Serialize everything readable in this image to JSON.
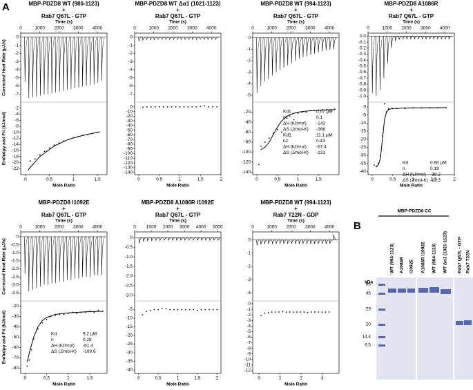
{
  "figure_label_a": "A",
  "chart_data": [
    {
      "type": "itc",
      "title": [
        "MBP-PDZD8 WT (980-1123)",
        "+",
        "Rab7 Q67L - GTP"
      ],
      "color": "#000000",
      "time_label": "Time (s)",
      "time_lim": [
        0,
        4500
      ],
      "time_ticks": [
        0,
        1000,
        2000,
        3000,
        4000
      ],
      "heat_ylabel": "Corrected Heat Rate (μJ/s)",
      "heat_ylim": [
        -8,
        0.5
      ],
      "heat_yticks": [
        0,
        -1,
        -2,
        -3,
        -4,
        -5,
        -6,
        -7
      ],
      "injections": {
        "x": [
          200,
          400,
          600,
          800,
          1000,
          1200,
          1400,
          1600,
          1800,
          2000,
          2200,
          2400,
          2600,
          2800,
          3000,
          3200,
          3400,
          3600,
          3800,
          4000,
          4200
        ],
        "values": [
          -5.5,
          -7.5,
          -7.4,
          -7.3,
          -7.2,
          -7.1,
          -7.0,
          -6.9,
          -6.8,
          -6.7,
          -6.6,
          -6.5,
          -6.4,
          -6.3,
          -6.2,
          -6.1,
          -6.0,
          -5.9,
          -5.8,
          -5.6,
          -5.4
        ]
      },
      "ratio_label": "Mole Ratio",
      "xlim": [
        -0.1,
        1.7
      ],
      "xticks": [
        0,
        0.5,
        1,
        1.5
      ],
      "ylabel": "Enthalpy and Fit (kJ/mol)",
      "ylim": [
        -24,
        0
      ],
      "yticks": [
        -2,
        -4,
        -6,
        -8,
        -10,
        -12,
        -14,
        -16,
        -18,
        -20,
        -22
      ],
      "points": {
        "x": [
          0.1,
          0.2,
          0.3,
          0.4,
          0.5,
          0.6,
          0.7,
          0.8,
          0.9,
          1.0,
          1.1,
          1.2,
          1.3,
          1.4,
          1.5
        ],
        "values": [
          -19.5,
          -18.8,
          -17.5,
          -16.3,
          -15.2,
          -14.2,
          -13.5,
          -12.8,
          -12.3,
          -11.8,
          -11.4,
          -11.0,
          -10.7,
          -10.4,
          -10.0
        ]
      },
      "fit": {
        "x": [
          0.05,
          0.3,
          0.6,
          0.9,
          1.2,
          1.55
        ],
        "values": [
          -22.5,
          -18,
          -14.5,
          -12.3,
          -11,
          -9.8
        ]
      }
    },
    {
      "type": "itc",
      "title": [
        "MBP-PDZD8 WT Δα1 (1021-1123)",
        "+",
        "Rab7 Q67L - GTP"
      ],
      "color": "#000000",
      "time_label": "Time (s)",
      "time_lim": [
        0,
        4500
      ],
      "time_ticks": [
        0,
        1000,
        2000,
        3000,
        4000
      ],
      "heat_ylim": [
        -8,
        0.5
      ],
      "heat_yticks": [
        0,
        -1,
        -2,
        -3,
        -4,
        -5,
        -6,
        -7
      ],
      "injections": {
        "x": [
          200,
          400,
          600,
          800,
          1000,
          1200,
          1400,
          1600,
          1800,
          2000,
          2200,
          2400,
          2600,
          2800,
          3000,
          3200,
          3400,
          3600,
          3800,
          4000,
          4200
        ],
        "values": [
          -0.5,
          -0.4,
          -0.35,
          -0.35,
          -0.35,
          -0.3,
          -0.3,
          -0.3,
          -0.3,
          -0.3,
          -0.3,
          -0.3,
          -0.3,
          -0.3,
          -0.3,
          -0.3,
          -0.3,
          -0.3,
          -0.3,
          -0.3,
          -0.3
        ]
      },
      "ratio_label": "Mole Ratio",
      "xlim": [
        -0.1,
        2.0
      ],
      "xticks": [
        0,
        0.5,
        1,
        1.5,
        2
      ],
      "ylim": [
        -145,
        10
      ],
      "yticks": [
        0,
        -10,
        -20,
        -30,
        -40,
        -50,
        -60,
        -70,
        -80,
        -90,
        -100,
        -110,
        -120,
        -130,
        -140
      ],
      "points": {
        "x": [
          0.1,
          0.2,
          0.3,
          0.4,
          0.5,
          0.6,
          0.7,
          0.8,
          0.9,
          1.0,
          1.1,
          1.2,
          1.3,
          1.4,
          1.5,
          1.6,
          1.7,
          1.8,
          1.9
        ],
        "values": [
          -1,
          0,
          0,
          0,
          0,
          0,
          0,
          0,
          0,
          0,
          0,
          0,
          0,
          0,
          1,
          2,
          0,
          0,
          0
        ]
      }
    },
    {
      "type": "itc",
      "title": [
        "MBP-PDZD8 WT (994-1123)",
        "+",
        "Rab7 Q67L - GTP"
      ],
      "color": "#000000",
      "time_label": "Time (s)",
      "time_lim": [
        0,
        4500
      ],
      "time_ticks": [
        0,
        1000,
        2000,
        3000,
        4000
      ],
      "heat_ylim": [
        -5.6,
        0.4
      ],
      "heat_yticks": [
        0,
        -1,
        -2,
        -3,
        -4,
        -5
      ],
      "injections": {
        "x": [
          200,
          400,
          600,
          800,
          1000,
          1200,
          1400,
          1600,
          1800,
          2000,
          2200,
          2400,
          2600,
          2800,
          3000,
          3200,
          3400,
          3600,
          3800,
          4000,
          4200
        ],
        "values": [
          -4.8,
          -4.2,
          -3.8,
          -3.6,
          -3.3,
          -3.0,
          -2.8,
          -2.6,
          -2.4,
          -2.2,
          -2.0,
          -1.8,
          -1.7,
          -1.6,
          -1.5,
          -1.4,
          -1.3,
          -1.2,
          -1.1,
          -1.05,
          -1.0
        ]
      },
      "ratio_label": "Mole Ratio",
      "xlim": [
        -0.1,
        2.0
      ],
      "xticks": [
        0,
        0.5,
        1,
        1.5
      ],
      "ylim": [
        -145,
        0
      ],
      "yticks": [
        -20,
        -40,
        -60,
        -80,
        -100,
        -120,
        -140
      ],
      "points": {
        "x": [
          0.05,
          0.1,
          0.2,
          0.3,
          0.4,
          0.5,
          0.6,
          0.7,
          0.8,
          0.9,
          1.0,
          1.1,
          1.2,
          1.3,
          1.4,
          1.5,
          1.6,
          1.7,
          1.8,
          1.9
        ],
        "values": [
          -125,
          -88,
          -80,
          -72,
          -62,
          -55,
          -60,
          -30,
          -28,
          -35,
          -22,
          -20,
          -20,
          -17,
          -17,
          -16,
          -15,
          -15,
          -15,
          -14
        ]
      },
      "fit": {
        "x": [
          0.1,
          0.2,
          0.3,
          0.4,
          0.5,
          0.6,
          0.7,
          0.8,
          1.0,
          1.2,
          1.5,
          1.9
        ],
        "values": [
          -95,
          -90,
          -80,
          -65,
          -50,
          -38,
          -30,
          -25,
          -20,
          -18,
          -16,
          -15
        ]
      },
      "annotations": [
        [
          "Kd1",
          "0.67 μM"
        ],
        [
          "n1",
          "0.1"
        ],
        [
          "ΔH (kJ/mol)",
          "-143"
        ],
        [
          "ΔS (J/mol-K)",
          "-366"
        ],
        [
          "Kd2",
          "11.1 μM"
        ],
        [
          "n2",
          "0.43"
        ],
        [
          "ΔH (kJ/mol)",
          "-67.4"
        ],
        [
          "ΔS (J/mol-K)",
          "-131"
        ]
      ]
    },
    {
      "type": "itc",
      "title": [
        "MBP-PDZD8 A1086R",
        "+",
        "Rab7 Q67L - GTP"
      ],
      "color": "#000000",
      "time_label": "Time (s)",
      "time_lim": [
        0,
        4500
      ],
      "time_ticks": [
        0,
        1000,
        2000,
        3000,
        4000
      ],
      "heat_ylim": [
        -1.1,
        0.05
      ],
      "heat_yticks": [
        {
          "value": 0,
          "label": "0.0"
        },
        -0.1,
        -0.2,
        -0.3,
        -0.4,
        -0.5,
        -0.6,
        -0.7,
        -0.8,
        -0.9,
        {
          "value": -1,
          "label": "-1.0"
        }
      ],
      "injections": {
        "x": [
          200,
          400,
          600,
          800,
          1000,
          1200,
          1400,
          1600,
          1800,
          2000,
          2200,
          2400,
          2600,
          2800,
          3000,
          3200,
          3400,
          3600,
          3800,
          4000,
          4200
        ],
        "values": [
          -0.95,
          -1.0,
          -0.9,
          -0.7,
          -0.45,
          -0.2,
          -0.08,
          -0.06,
          -0.05,
          -0.05,
          -0.05,
          -0.05,
          -0.05,
          -0.05,
          -0.05,
          -0.05,
          -0.05,
          -0.05,
          -0.05,
          -0.05,
          -0.05
        ]
      },
      "ratio_label": "Mole Ratio",
      "xlim": [
        -0.1,
        2.0
      ],
      "xticks": [
        0,
        0.5,
        1,
        1.5,
        2
      ],
      "ylim": [
        -42,
        3
      ],
      "yticks": [
        0,
        -5,
        -10,
        -15,
        -20,
        -25,
        -30,
        -35,
        -40
      ],
      "points": {
        "x": [
          0.05,
          0.1,
          0.15,
          0.2,
          0.25,
          0.3,
          0.35,
          0.4,
          0.5,
          0.6,
          0.8,
          1.0,
          1.2,
          1.4,
          1.6,
          1.8
        ],
        "values": [
          -36,
          -37,
          -35,
          -30,
          -18,
          2,
          -3,
          -1,
          -1,
          -1,
          -1,
          -0.5,
          -0.5,
          -0.5,
          -0.5,
          -0.5
        ]
      },
      "fit": {
        "x": [
          0.1,
          0.15,
          0.2,
          0.25,
          0.3,
          0.35,
          0.4,
          0.5,
          0.8,
          1.8
        ],
        "values": [
          -37,
          -36,
          -32,
          -20,
          -8,
          -3,
          -1.5,
          -1,
          -0.6,
          -0.4
        ]
      },
      "annotations": [
        [
          "Kd",
          "0.66 μM"
        ],
        [
          "n",
          "0.19"
        ],
        [
          "ΔH (kJ/mol)",
          "-39.2"
        ],
        [
          "ΔS (J/mol-K)",
          "-13.3"
        ]
      ]
    },
    {
      "type": "itc",
      "title": [
        "MBP-PDZD8 I1092E",
        "+",
        "Rab7 Q67L - GTP"
      ],
      "color": "#000000",
      "time_label": "Time (s)",
      "time_lim": [
        0,
        4500
      ],
      "time_ticks": [
        0,
        1000,
        2000,
        3000,
        4000
      ],
      "heat_ylabel": "Corrected Heat Rate (μJ/s)",
      "heat_ylim": [
        -4,
        0.3
      ],
      "heat_yticks": [
        0,
        -0.5,
        {
          "value": -1,
          "label": "-1.0"
        },
        -1.5,
        {
          "value": -2,
          "label": "-2.0"
        },
        -2.5,
        {
          "value": -3,
          "label": "-3.0"
        },
        -3.5
      ],
      "injections": {
        "x": [
          200,
          400,
          600,
          800,
          1000,
          1200,
          1400,
          1600,
          1800,
          2000,
          2200,
          2400,
          2600,
          2800,
          3000,
          3200,
          3400,
          3600,
          3800,
          4000,
          4200
        ],
        "values": [
          -2.3,
          -3.4,
          -3.3,
          -3.2,
          -3.1,
          -3.0,
          -3.0,
          -2.9,
          -2.9,
          -2.8,
          -2.8,
          -2.7,
          -2.7,
          -2.6,
          -2.6,
          -2.5,
          -2.5,
          -2.5,
          -2.4,
          -2.4,
          -2.4
        ]
      },
      "ratio_label": "Mole Ratio",
      "xlim": [
        -0.1,
        1.9
      ],
      "xticks": [
        0,
        0.5,
        1,
        1.5
      ],
      "ylabel": "Enthalpy and Fit (kJ/mol)",
      "ylim": [
        -85,
        -15
      ],
      "yticks": [
        -20,
        -30,
        -40,
        -50,
        -60,
        -70,
        -80
      ],
      "points": {
        "x": [
          0.05,
          0.1,
          0.15,
          0.2,
          0.3,
          0.4,
          0.5,
          0.6,
          0.7,
          0.8,
          0.9,
          1.0,
          1.1,
          1.2,
          1.3,
          1.4,
          1.5,
          1.6,
          1.7,
          1.8
        ],
        "values": [
          -78,
          -72,
          -62,
          -52,
          -42,
          -36,
          -33,
          -30,
          -29,
          -28,
          -28,
          -27,
          -26,
          -27,
          -26,
          -26,
          -25,
          -26,
          -24,
          -25
        ]
      },
      "fit": {
        "x": [
          0.05,
          0.1,
          0.2,
          0.3,
          0.4,
          0.5,
          0.7,
          1.0,
          1.4,
          1.8
        ],
        "values": [
          -74,
          -65,
          -50,
          -40,
          -34,
          -31,
          -28,
          -26.5,
          -25.5,
          -25
        ]
      },
      "annotations": [
        [
          "Kd",
          "9.2 μM"
        ],
        [
          "n",
          "0.28"
        ],
        [
          "ΔH (kJ/mol)",
          "-61.4"
        ],
        [
          "ΔS (J/mol-K)",
          "-109.6"
        ]
      ]
    },
    {
      "type": "itc",
      "title": [
        "MBP-PDZD8 A1086R I1092E",
        "+",
        "Rab7 Q67L - GTP"
      ],
      "color": "#000000",
      "time_label": "Time (s)",
      "time_lim": [
        0,
        5200
      ],
      "time_ticks": [
        0,
        1000,
        2000,
        3000,
        4000,
        5000
      ],
      "heat_ylim": [
        -3.3,
        0.3
      ],
      "heat_yticks": [
        0,
        -0.5,
        {
          "value": -1,
          "label": "-1.0"
        },
        -1.5,
        {
          "value": -2,
          "label": "-2.0"
        },
        -2.5,
        {
          "value": -3,
          "label": "-3.0"
        }
      ],
      "injections": {
        "x": [
          250,
          500,
          750,
          1000,
          1250,
          1500,
          1750,
          2000,
          2250,
          2500,
          2750,
          3000,
          3250,
          3500,
          3750,
          4000,
          4250,
          4500,
          4750,
          5000
        ],
        "values": [
          -0.3,
          -0.2,
          -0.18,
          -0.17,
          -0.16,
          -0.16,
          -0.15,
          -0.15,
          -0.15,
          -0.15,
          -0.15,
          -0.15,
          -0.15,
          -0.15,
          -0.15,
          -0.15,
          -0.15,
          -0.15,
          -0.15,
          -0.15
        ]
      },
      "ratio_label": "Mole Ratio",
      "xlim": [
        -0.1,
        2.1
      ],
      "xticks": [
        0,
        0.5,
        1,
        1.5,
        2
      ],
      "ylim": [
        -42,
        0
      ],
      "yticks": [
        -5,
        -10,
        -15,
        -20,
        -25,
        -30,
        -35,
        -40
      ],
      "points": {
        "x": [
          0.1,
          0.2,
          0.3,
          0.4,
          0.5,
          0.6,
          0.7,
          0.8,
          0.9,
          1.0,
          1.1,
          1.2,
          1.3,
          1.4,
          1.5,
          1.6,
          1.7,
          1.8,
          1.9,
          2.0
        ],
        "values": [
          -8,
          -6,
          -5.5,
          -5,
          -5,
          -4.5,
          -4.5,
          -5,
          -5,
          -5,
          -5,
          -5,
          -5,
          -5,
          -5.5,
          -5,
          -5,
          -5,
          -5,
          -5
        ]
      }
    },
    {
      "type": "itc",
      "title": [
        "MBP-PDZD8 WT (994-1123)",
        "+",
        "Rab7 T22N - GDP"
      ],
      "color": "#000000",
      "time_label": "Time (s)",
      "time_lim": [
        0,
        4500
      ],
      "time_ticks": [
        0,
        1000,
        2000,
        3000,
        4000
      ],
      "heat_ylim": [
        -4.6,
        0.6
      ],
      "heat_yticks": [
        0,
        -1,
        -2,
        -3,
        -4
      ],
      "injections": {
        "x": [
          200,
          400,
          600,
          800,
          1000,
          1200,
          1400,
          1600,
          1800,
          2000,
          2200,
          2400,
          2600,
          2800,
          3000,
          3200,
          3400,
          3600,
          3800,
          4000,
          4200
        ],
        "values": [
          -0.4,
          -0.35,
          -0.3,
          -0.3,
          -0.3,
          -0.3,
          -0.3,
          -0.3,
          -0.3,
          -0.3,
          -0.3,
          -0.3,
          -0.3,
          -0.3,
          -0.3,
          -0.3,
          -0.3,
          -0.3,
          -0.3,
          -0.3,
          0.4
        ]
      },
      "ratio_label": "Mole Ratio",
      "xlim": [
        -0.3,
        3.8
      ],
      "xticks": [
        0,
        1,
        2,
        3
      ],
      "ylim": [
        -12.5,
        0.5
      ],
      "yticks": [
        0,
        -1,
        -2,
        -3,
        -4,
        -5,
        -6,
        -7,
        -8,
        -9,
        -10,
        -11,
        -12
      ],
      "points": {
        "x": [
          0.1,
          0.27,
          0.44,
          0.61,
          0.78,
          0.95,
          1.12,
          1.29,
          1.46,
          1.63,
          1.8,
          1.97,
          2.14,
          2.31,
          2.48,
          2.65,
          2.82,
          2.99,
          3.16,
          3.33
        ],
        "values": [
          -2.1,
          -1.7,
          -1.6,
          -1.5,
          -1.5,
          -1.5,
          -1.4,
          -1.5,
          -1.5,
          -1.5,
          -1.5,
          -1.5,
          -1.5,
          -1.6,
          -1.5,
          -1.5,
          -1.5,
          -1.5,
          -1.5,
          -1.5
        ]
      }
    }
  ],
  "gel": {
    "label": "B",
    "group_label": "MBP-PDZD8 CC",
    "kda_label": "kDa",
    "markers": [
      "66",
      "45",
      "29",
      "20",
      "14.4",
      "6.5"
    ],
    "lanes": [
      "WT (994-1123)",
      "A1086R",
      "I1092E",
      "A1086R I1092E",
      "WT (984-1123)",
      "WT Δα1 (1021-1123)",
      "Rab7 Q67L - GTP",
      "Rab7 T22N"
    ]
  }
}
